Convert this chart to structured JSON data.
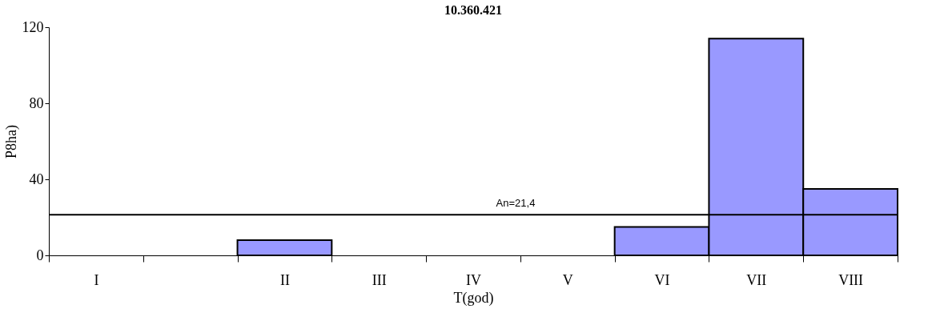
{
  "chart_data": {
    "type": "bar",
    "title": "10.360.421",
    "xlabel": "T(god)",
    "ylabel": "P8ha)",
    "categories": [
      "I",
      null,
      "II",
      "III",
      "IV",
      "V",
      "VI",
      "VII",
      "VIII"
    ],
    "values": [
      null,
      null,
      8,
      null,
      null,
      null,
      15,
      114,
      35
    ],
    "color": "#9999ff",
    "ylim": [
      0,
      120
    ],
    "yticks": [
      0,
      40,
      80,
      120
    ],
    "grid": false,
    "ref_lines": [
      {
        "axis": "y",
        "value": 21.4,
        "label": "An=21,4",
        "color": "#000000"
      }
    ]
  }
}
